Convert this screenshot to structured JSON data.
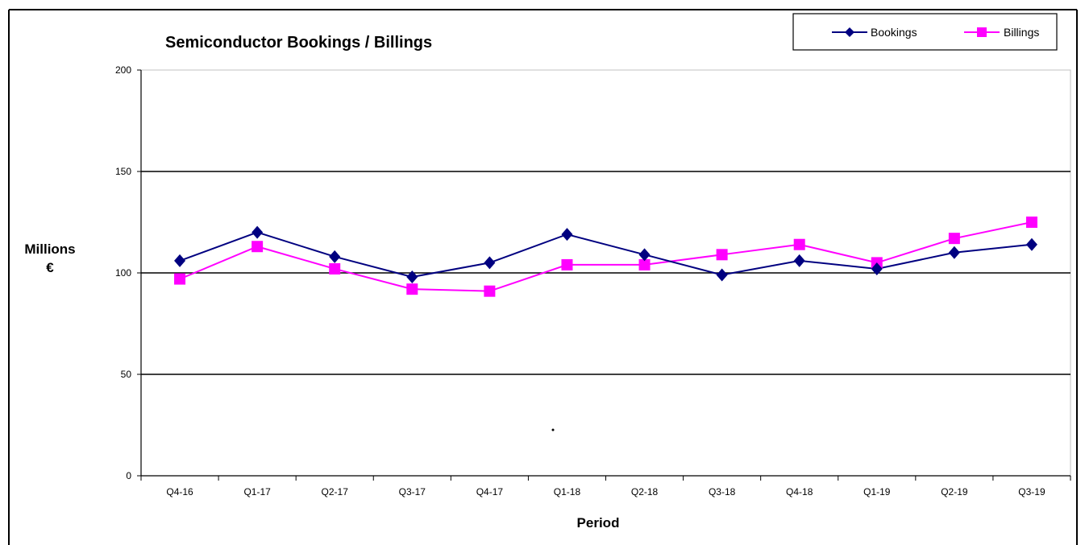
{
  "chart_data": {
    "type": "line",
    "title": "Semiconductor Bookings / Billings",
    "xlabel": "Period",
    "ylabel_line1": "Millions",
    "ylabel_line2": "€",
    "categories": [
      "Q4-16",
      "Q1-17",
      "Q2-17",
      "Q3-17",
      "Q4-17",
      "Q1-18",
      "Q2-18",
      "Q3-18",
      "Q4-18",
      "Q1-19",
      "Q2-19",
      "Q3-19"
    ],
    "ylim": [
      0,
      200
    ],
    "yticks": [
      0,
      50,
      100,
      150,
      200
    ],
    "grid": true,
    "legend_position": "top-right",
    "series": [
      {
        "name": "Bookings",
        "color": "#000080",
        "marker": "diamond",
        "values": [
          106,
          120,
          108,
          98,
          105,
          119,
          109,
          99,
          106,
          102,
          110,
          114
        ]
      },
      {
        "name": "Billings",
        "color": "#FF00FF",
        "marker": "square",
        "values": [
          97,
          113,
          102,
          92,
          91,
          104,
          104,
          109,
          114,
          105,
          117,
          125
        ]
      }
    ]
  }
}
